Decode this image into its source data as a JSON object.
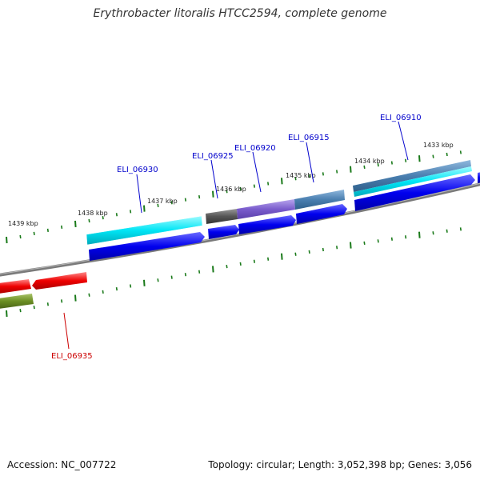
{
  "title": "Erythrobacter litoralis HTCC2594, complete genome",
  "footer": {
    "accession": "Accession: NC_007722",
    "topology": "Topology: circular; Length: 3,052,398 bp; Genes: 3,056"
  },
  "tick_labels": [
    "1439 kbp",
    "1438 kbp",
    "1437 kbp",
    "1436 kbp",
    "1435 kbp",
    "1434 kbp",
    "1433 kbp"
  ],
  "gene_labels": [
    "ELI_06930",
    "ELI_06925",
    "ELI_06920",
    "ELI_06915",
    "ELI_06910",
    "ELI_06935"
  ],
  "colors": {
    "backbone": "#888888",
    "tick": "#1a7a1a",
    "cds_blue": "#0000ee",
    "cds_cyan": "#00e5f5",
    "cds_red": "#ee0000",
    "cds_olive": "#6b8e23",
    "cds_gray": "#555555",
    "cds_purple": "#7a5ccc",
    "cds_steel": "#4a7fb0",
    "label_blue": "#0000cc",
    "label_red": "#cc0000"
  }
}
